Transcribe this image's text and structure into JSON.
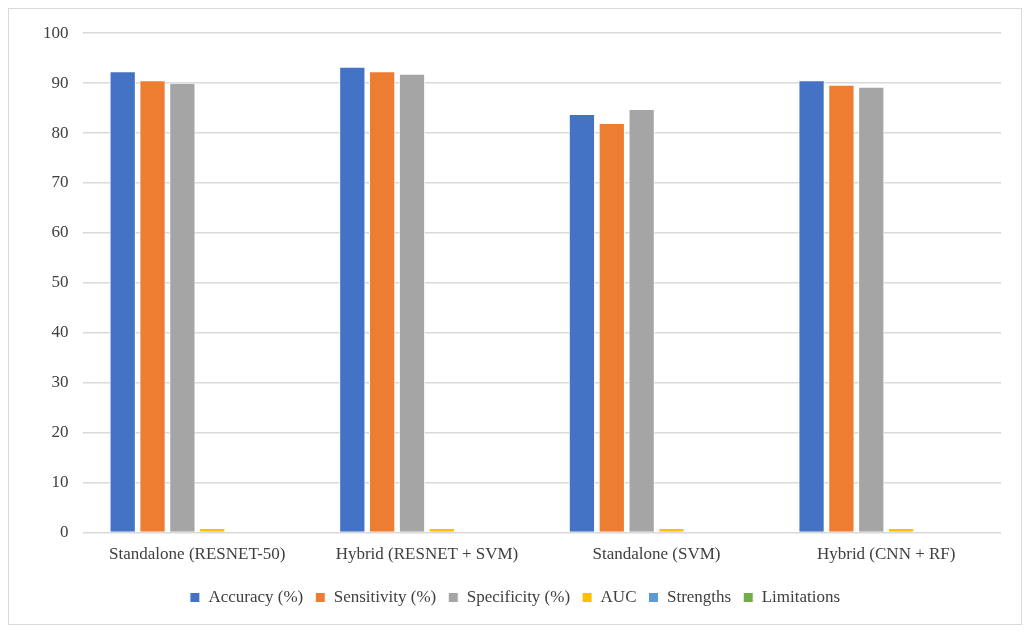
{
  "chart_data": {
    "type": "bar",
    "categories": [
      "Standalone (RESNET-50)",
      "Hybrid (RESNET + SVM)",
      "Standalone (SVM)",
      "Hybrid (CNN + RF)"
    ],
    "series": [
      {
        "name": "Accuracy (%)",
        "color": "#4472c4",
        "values": [
          92.4,
          93.3,
          83.8,
          90.6
        ]
      },
      {
        "name": "Sensitivity (%)",
        "color": "#ed7d31",
        "values": [
          90.6,
          92.4,
          82.0,
          89.7
        ]
      },
      {
        "name": "Specificity (%)",
        "color": "#a5a5a5",
        "values": [
          90.1,
          91.9,
          84.8,
          89.3
        ]
      },
      {
        "name": "AUC",
        "color": "#ffc000",
        "values": [
          0.9,
          0.9,
          0.9,
          0.9
        ]
      },
      {
        "name": "Strengths",
        "color": "#5b9bd5",
        "values": [
          null,
          null,
          null,
          null
        ]
      },
      {
        "name": "Limitations",
        "color": "#70ad47",
        "values": [
          null,
          null,
          null,
          null
        ]
      }
    ],
    "ylim": [
      0,
      100
    ],
    "yticks": [
      0,
      10,
      20,
      30,
      40,
      50,
      60,
      70,
      80,
      90,
      100
    ],
    "grid": "y",
    "legend": "bottom"
  }
}
